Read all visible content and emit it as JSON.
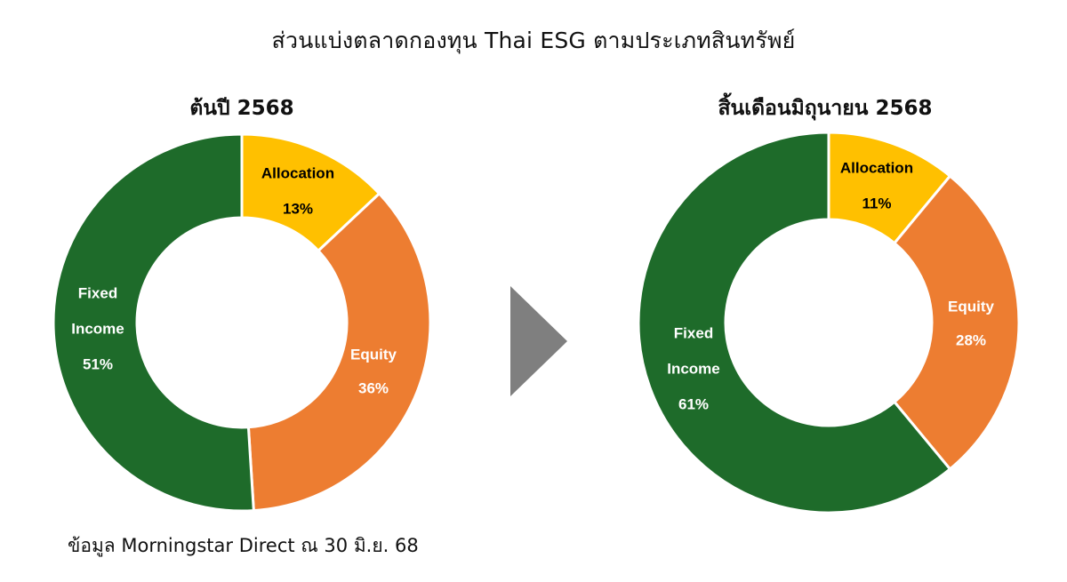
{
  "title": "ส่วนแบ่งตลาดกองทุน Thai ESG ตามประเภทสินทรัพย์",
  "source": "ข้อมูล Morningstar Direct ณ 30 มิ.ย. 68",
  "colors": {
    "allocation": "#FFC000",
    "equity": "#ED7D31",
    "fixed_income": "#1E6B2A",
    "arrow": "#7F7F7F"
  },
  "chart_data": [
    {
      "type": "pie",
      "title": "ต้นปี 2568",
      "series": [
        {
          "name": "Allocation",
          "value": 13,
          "label": "13%",
          "color": "#FFC000",
          "text_color": "#000000"
        },
        {
          "name": "Equity",
          "value": 36,
          "label": "36%",
          "color": "#ED7D31",
          "text_color": "#ffffff"
        },
        {
          "name": "Fixed Income",
          "value": 51,
          "label": "51%",
          "color": "#1E6B2A",
          "text_color": "#ffffff"
        }
      ]
    },
    {
      "type": "pie",
      "title": "สิ้นเดือนมิถุนายน 2568",
      "series": [
        {
          "name": "Allocation",
          "value": 11,
          "label": "11%",
          "color": "#FFC000",
          "text_color": "#000000"
        },
        {
          "name": "Equity",
          "value": 28,
          "label": "28%",
          "color": "#ED7D31",
          "text_color": "#ffffff"
        },
        {
          "name": "Fixed Income",
          "value": 61,
          "label": "61%",
          "color": "#1E6B2A",
          "text_color": "#ffffff"
        }
      ]
    }
  ]
}
